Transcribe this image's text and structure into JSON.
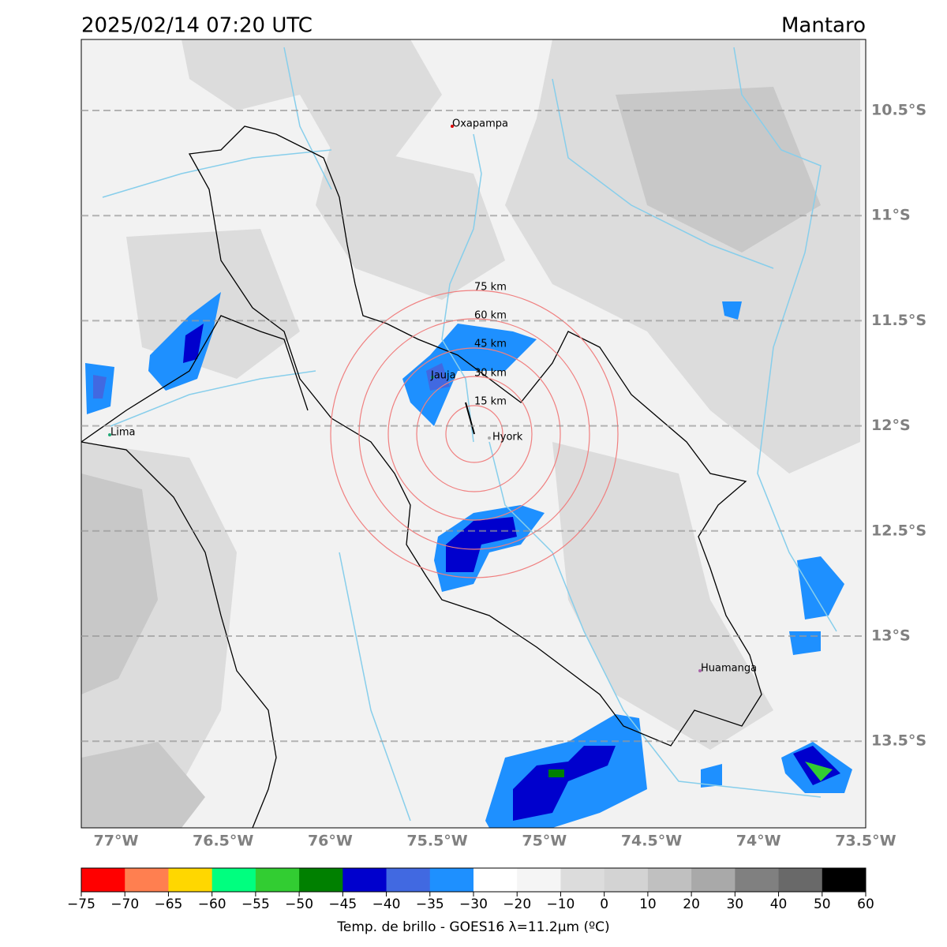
{
  "header": {
    "title_left": "2025/02/14 07:20 UTC",
    "title_right": "Mantaro"
  },
  "map": {
    "lat_labels": [
      "10.5°S",
      "11°S",
      "11.5°S",
      "12°S",
      "12.5°S",
      "13°S",
      "13.5°S"
    ],
    "lon_labels": [
      "77°W",
      "76.5°W",
      "76°W",
      "75.5°W",
      "75°W",
      "74.5°W",
      "74°W",
      "73.5°W"
    ],
    "places": [
      "Oxapampa",
      "Jauja",
      "Lima",
      "Hyork",
      "Huamanga"
    ],
    "rings": [
      "15 km",
      "30 km",
      "45 km",
      "60 km",
      "75 km"
    ]
  },
  "colorbar": {
    "label": "Temp. de brillo - GOES16 λ=11.2μm (ºC)",
    "ticks": [
      {
        "value": -75,
        "label": "−75"
      },
      {
        "value": -70,
        "label": "−70"
      },
      {
        "value": -65,
        "label": "−65"
      },
      {
        "value": -60,
        "label": "−60"
      },
      {
        "value": -55,
        "label": "−55"
      },
      {
        "value": -50,
        "label": "−50"
      },
      {
        "value": -45,
        "label": "−45"
      },
      {
        "value": -40,
        "label": "−40"
      },
      {
        "value": -35,
        "label": "−35"
      },
      {
        "value": -30,
        "label": "−30"
      },
      {
        "value": -20,
        "label": "−20"
      },
      {
        "value": -10,
        "label": "−10"
      },
      0,
      10,
      20,
      30,
      40,
      50,
      60
    ],
    "colors": [
      "#ff0000",
      "#ff7f50",
      "#ffd700",
      "#00ff7f",
      "#32cd32",
      "#008000",
      "#0000cd",
      "#4169e1",
      "#1e90ff",
      "#ffffff",
      "#f5f5f5",
      "#dcdcdc",
      "#d3d3d3",
      "#c0c0c0",
      "#a9a9a9",
      "#808080",
      "#696969",
      "#000000"
    ]
  }
}
